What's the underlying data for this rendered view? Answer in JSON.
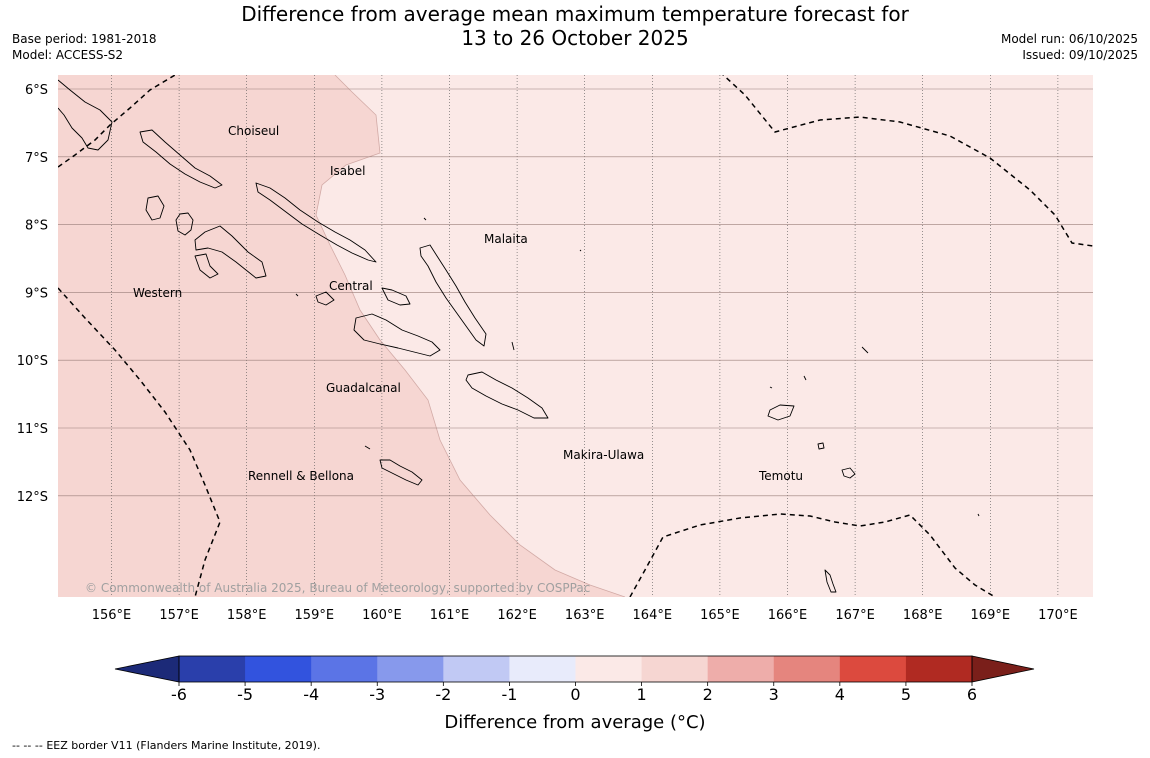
{
  "header": {
    "title_line1": "Difference from average mean maximum temperature forecast for",
    "title_line2": "13 to 26 October 2025",
    "base_period": "Base period: 1981-2018",
    "model": "Model: ACCESS-S2",
    "model_run": "Model run: 06/10/2025",
    "issued": "Issued: 09/10/2025"
  },
  "map": {
    "copyright": "© Commonwealth of Australia 2025, Bureau of Meteorology, supported by COSPPac",
    "lat_labels": [
      "6°S",
      "7°S",
      "8°S",
      "9°S",
      "10°S",
      "11°S",
      "12°S"
    ],
    "lon_labels": [
      "156°E",
      "157°E",
      "158°E",
      "159°E",
      "160°E",
      "161°E",
      "162°E",
      "163°E",
      "164°E",
      "165°E",
      "166°E",
      "167°E",
      "168°E",
      "169°E",
      "170°E"
    ],
    "regions": [
      {
        "name": "Choiseul"
      },
      {
        "name": "Isabel"
      },
      {
        "name": "Malaita"
      },
      {
        "name": "Western"
      },
      {
        "name": "Central"
      },
      {
        "name": "Guadalcanal"
      },
      {
        "name": "Makira-Ulawa"
      },
      {
        "name": "Rennell & Bellona"
      },
      {
        "name": "Temotu"
      }
    ],
    "colors": {
      "anomaly_0_1": "#fbe9e7",
      "anomaly_1_2": "#f6d6d2",
      "eez_border": "#000000",
      "coastline": "#000000"
    }
  },
  "colorbar": {
    "label": "Difference from average (°C)",
    "ticks": [
      "-6",
      "-5",
      "-4",
      "-3",
      "-2",
      "-1",
      "0",
      "1",
      "2",
      "3",
      "4",
      "5",
      "6"
    ],
    "under_color": "#1c2a78",
    "over_color": "#7a1f1a",
    "bins": [
      "#2a3fab",
      "#3253de",
      "#5b74e6",
      "#8799ec",
      "#c1c9f4",
      "#e8ebfb",
      "#fbe9e7",
      "#f6d6d2",
      "#eeadaa",
      "#e5857e",
      "#dc4a3e",
      "#b02a22"
    ]
  },
  "footer": {
    "legend_symbol": "-- -- --",
    "legend_text": "EEZ border V11 (Flanders Marine Institute, 2019)."
  }
}
